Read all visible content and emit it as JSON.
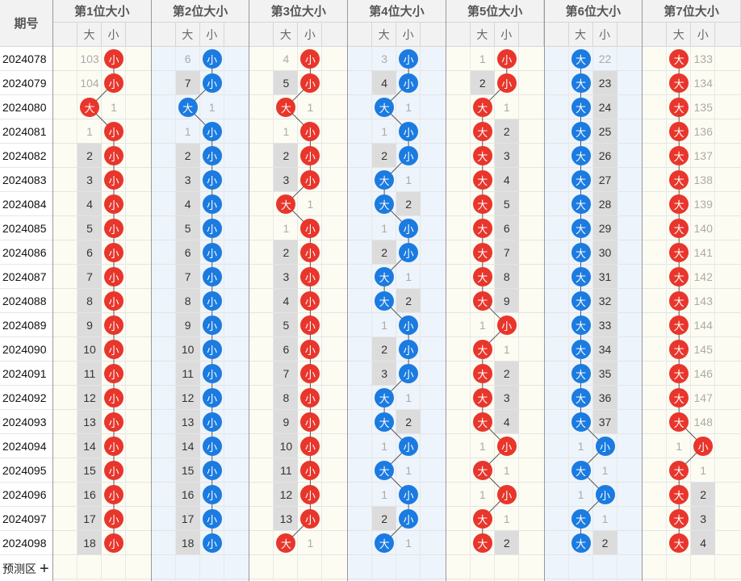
{
  "header": {
    "issue_label": "期号",
    "big_label": "大",
    "small_label": "小",
    "positions": [
      "第1位大小",
      "第2位大小",
      "第3位大小",
      "第4位大小",
      "第5位大小",
      "第6位大小",
      "第7位大小"
    ]
  },
  "footer": {
    "predict_label": "预测区",
    "add_symbol": "+"
  },
  "colors": {
    "big": "#e8362c",
    "small": "#1b7be0",
    "run_bg": "#dcdcdc",
    "col_bg_a": "#fdfcf3",
    "col_bg_b": "#eef4fb"
  },
  "rows": [
    {
      "issue": "2024078",
      "cols": [
        [
          "103",
          "小"
        ],
        [
          "6",
          "小"
        ],
        [
          "4",
          "小"
        ],
        [
          "3",
          "小"
        ],
        [
          "1",
          "小"
        ],
        [
          "大",
          "22"
        ],
        [
          "大",
          "133"
        ]
      ]
    },
    {
      "issue": "2024079",
      "cols": [
        [
          "104",
          "小"
        ],
        [
          "7",
          "小"
        ],
        [
          "5",
          "小"
        ],
        [
          "4",
          "小"
        ],
        [
          "2",
          "小"
        ],
        [
          "大",
          "23"
        ],
        [
          "大",
          "134"
        ]
      ]
    },
    {
      "issue": "2024080",
      "cols": [
        [
          "大",
          "1"
        ],
        [
          "大",
          "1"
        ],
        [
          "大",
          "1"
        ],
        [
          "大",
          "1"
        ],
        [
          "大",
          "1"
        ],
        [
          "大",
          "24"
        ],
        [
          "大",
          "135"
        ]
      ]
    },
    {
      "issue": "2024081",
      "cols": [
        [
          "1",
          "小"
        ],
        [
          "1",
          "小"
        ],
        [
          "1",
          "小"
        ],
        [
          "1",
          "小"
        ],
        [
          "大",
          "2"
        ],
        [
          "大",
          "25"
        ],
        [
          "大",
          "136"
        ]
      ]
    },
    {
      "issue": "2024082",
      "cols": [
        [
          "2",
          "小"
        ],
        [
          "2",
          "小"
        ],
        [
          "2",
          "小"
        ],
        [
          "2",
          "小"
        ],
        [
          "大",
          "3"
        ],
        [
          "大",
          "26"
        ],
        [
          "大",
          "137"
        ]
      ]
    },
    {
      "issue": "2024083",
      "cols": [
        [
          "3",
          "小"
        ],
        [
          "3",
          "小"
        ],
        [
          "3",
          "小"
        ],
        [
          "大",
          "1"
        ],
        [
          "大",
          "4"
        ],
        [
          "大",
          "27"
        ],
        [
          "大",
          "138"
        ]
      ]
    },
    {
      "issue": "2024084",
      "cols": [
        [
          "4",
          "小"
        ],
        [
          "4",
          "小"
        ],
        [
          "大",
          "1"
        ],
        [
          "大",
          "2"
        ],
        [
          "大",
          "5"
        ],
        [
          "大",
          "28"
        ],
        [
          "大",
          "139"
        ]
      ]
    },
    {
      "issue": "2024085",
      "cols": [
        [
          "5",
          "小"
        ],
        [
          "5",
          "小"
        ],
        [
          "1",
          "小"
        ],
        [
          "1",
          "小"
        ],
        [
          "大",
          "6"
        ],
        [
          "大",
          "29"
        ],
        [
          "大",
          "140"
        ]
      ]
    },
    {
      "issue": "2024086",
      "cols": [
        [
          "6",
          "小"
        ],
        [
          "6",
          "小"
        ],
        [
          "2",
          "小"
        ],
        [
          "2",
          "小"
        ],
        [
          "大",
          "7"
        ],
        [
          "大",
          "30"
        ],
        [
          "大",
          "141"
        ]
      ]
    },
    {
      "issue": "2024087",
      "cols": [
        [
          "7",
          "小"
        ],
        [
          "7",
          "小"
        ],
        [
          "3",
          "小"
        ],
        [
          "大",
          "1"
        ],
        [
          "大",
          "8"
        ],
        [
          "大",
          "31"
        ],
        [
          "大",
          "142"
        ]
      ]
    },
    {
      "issue": "2024088",
      "cols": [
        [
          "8",
          "小"
        ],
        [
          "8",
          "小"
        ],
        [
          "4",
          "小"
        ],
        [
          "大",
          "2"
        ],
        [
          "大",
          "9"
        ],
        [
          "大",
          "32"
        ],
        [
          "大",
          "143"
        ]
      ]
    },
    {
      "issue": "2024089",
      "cols": [
        [
          "9",
          "小"
        ],
        [
          "9",
          "小"
        ],
        [
          "5",
          "小"
        ],
        [
          "1",
          "小"
        ],
        [
          "1",
          "小"
        ],
        [
          "大",
          "33"
        ],
        [
          "大",
          "144"
        ]
      ]
    },
    {
      "issue": "2024090",
      "cols": [
        [
          "10",
          "小"
        ],
        [
          "10",
          "小"
        ],
        [
          "6",
          "小"
        ],
        [
          "2",
          "小"
        ],
        [
          "大",
          "1"
        ],
        [
          "大",
          "34"
        ],
        [
          "大",
          "145"
        ]
      ]
    },
    {
      "issue": "2024091",
      "cols": [
        [
          "11",
          "小"
        ],
        [
          "11",
          "小"
        ],
        [
          "7",
          "小"
        ],
        [
          "3",
          "小"
        ],
        [
          "大",
          "2"
        ],
        [
          "大",
          "35"
        ],
        [
          "大",
          "146"
        ]
      ]
    },
    {
      "issue": "2024092",
      "cols": [
        [
          "12",
          "小"
        ],
        [
          "12",
          "小"
        ],
        [
          "8",
          "小"
        ],
        [
          "大",
          "1"
        ],
        [
          "大",
          "3"
        ],
        [
          "大",
          "36"
        ],
        [
          "大",
          "147"
        ]
      ]
    },
    {
      "issue": "2024093",
      "cols": [
        [
          "13",
          "小"
        ],
        [
          "13",
          "小"
        ],
        [
          "9",
          "小"
        ],
        [
          "大",
          "2"
        ],
        [
          "大",
          "4"
        ],
        [
          "大",
          "37"
        ],
        [
          "大",
          "148"
        ]
      ]
    },
    {
      "issue": "2024094",
      "cols": [
        [
          "14",
          "小"
        ],
        [
          "14",
          "小"
        ],
        [
          "10",
          "小"
        ],
        [
          "1",
          "小"
        ],
        [
          "1",
          "小"
        ],
        [
          "1",
          "小"
        ],
        [
          "1",
          "小"
        ]
      ]
    },
    {
      "issue": "2024095",
      "cols": [
        [
          "15",
          "小"
        ],
        [
          "15",
          "小"
        ],
        [
          "11",
          "小"
        ],
        [
          "大",
          "1"
        ],
        [
          "大",
          "1"
        ],
        [
          "大",
          "1"
        ],
        [
          "大",
          "1"
        ]
      ]
    },
    {
      "issue": "2024096",
      "cols": [
        [
          "16",
          "小"
        ],
        [
          "16",
          "小"
        ],
        [
          "12",
          "小"
        ],
        [
          "1",
          "小"
        ],
        [
          "1",
          "小"
        ],
        [
          "1",
          "小"
        ],
        [
          "大",
          "2"
        ]
      ]
    },
    {
      "issue": "2024097",
      "cols": [
        [
          "17",
          "小"
        ],
        [
          "17",
          "小"
        ],
        [
          "13",
          "小"
        ],
        [
          "2",
          "小"
        ],
        [
          "大",
          "1"
        ],
        [
          "大",
          "1"
        ],
        [
          "大",
          "3"
        ]
      ]
    },
    {
      "issue": "2024098",
      "cols": [
        [
          "18",
          "小"
        ],
        [
          "18",
          "小"
        ],
        [
          "大",
          "1"
        ],
        [
          "大",
          "1"
        ],
        [
          "大",
          "2"
        ],
        [
          "大",
          "2"
        ],
        [
          "大",
          "4"
        ]
      ]
    }
  ]
}
